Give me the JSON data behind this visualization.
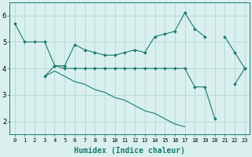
{
  "xlabel": "Humidex (Indice chaleur)",
  "x": [
    0,
    1,
    2,
    3,
    4,
    5,
    6,
    7,
    8,
    9,
    10,
    11,
    12,
    13,
    14,
    15,
    16,
    17,
    18,
    19,
    20,
    21,
    22,
    23
  ],
  "line1": [
    5.7,
    5.0,
    5.0,
    5.0,
    4.1,
    4.1,
    4.9,
    4.7,
    4.6,
    4.5,
    4.5,
    4.6,
    4.7,
    4.6,
    5.2,
    5.3,
    5.4,
    6.1,
    5.5,
    5.2,
    null,
    5.2,
    4.6,
    4.0
  ],
  "line2": [
    null,
    null,
    null,
    3.7,
    4.1,
    4.0,
    4.0,
    4.0,
    4.0,
    4.0,
    4.0,
    4.0,
    4.0,
    4.0,
    4.0,
    4.0,
    4.0,
    4.0,
    3.3,
    3.3,
    2.1,
    null,
    3.4,
    4.0
  ],
  "line3": [
    null,
    null,
    null,
    3.7,
    3.9,
    3.7,
    3.5,
    3.4,
    3.2,
    3.1,
    2.9,
    2.8,
    2.6,
    2.4,
    2.3,
    2.1,
    1.9,
    1.8,
    null,
    null,
    null,
    null,
    null,
    null
  ],
  "ylim": [
    1.5,
    6.5
  ],
  "xlim": [
    -0.5,
    23.5
  ],
  "yticks": [
    2,
    3,
    4,
    5,
    6
  ],
  "xticks": [
    0,
    1,
    2,
    3,
    4,
    5,
    6,
    7,
    8,
    9,
    10,
    11,
    12,
    13,
    14,
    15,
    16,
    17,
    18,
    19,
    20,
    21,
    22,
    23
  ],
  "line_color": "#1a7a6e",
  "bg_color": "#d9f0ef",
  "grid_color": "#b0d8d5",
  "tick_fontsize": 5.0,
  "ylabel_fontsize": 6.5,
  "xlabel_fontsize": 7.0,
  "linewidth": 0.8,
  "markersize": 2.0
}
